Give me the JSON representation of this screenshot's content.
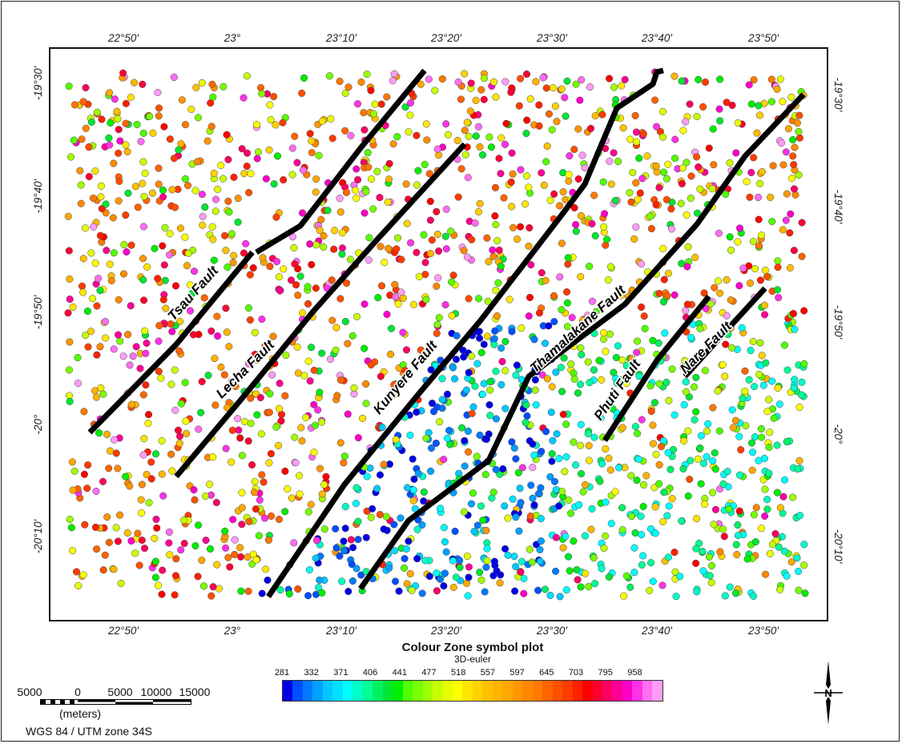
{
  "map": {
    "lon_labels": [
      "22°50'",
      "23°",
      "23°10'",
      "23°20'",
      "23°30'",
      "23°40'",
      "23°50'"
    ],
    "lat_labels": [
      "-19°30'",
      "-19°40'",
      "-19°50'",
      "-20°",
      "-20°10'"
    ],
    "faults": [
      "Tsau Fault",
      "Lecha Fault",
      "Kunyere Fault",
      "Thamalakane Fault",
      "Phuti Fault",
      "Nare Fault"
    ]
  },
  "legend": {
    "title": "Colour Zone symbol plot",
    "subtitle": "3D-euler",
    "ticks": [
      "281",
      "332",
      "371",
      "406",
      "441",
      "477",
      "518",
      "557",
      "597",
      "645",
      "703",
      "795",
      "958"
    ],
    "colors": [
      "#0000e6",
      "#0050ff",
      "#0078ff",
      "#00a0ff",
      "#00c8ff",
      "#00e0ff",
      "#00ffff",
      "#00ffc8",
      "#00ff96",
      "#00f064",
      "#00e632",
      "#00ee00",
      "#50ff00",
      "#78ff00",
      "#a0ff00",
      "#c8ff00",
      "#e6ff00",
      "#ffff00",
      "#ffe600",
      "#ffd200",
      "#ffc000",
      "#ffb400",
      "#ffa800",
      "#ff9600",
      "#ff8800",
      "#ff7800",
      "#ff6400",
      "#ff5000",
      "#ff3c00",
      "#ff2000",
      "#ff0000",
      "#ff0032",
      "#ff0064",
      "#ff0096",
      "#ff00c8",
      "#ff32e6",
      "#ff6ef0",
      "#ff9cf5"
    ]
  },
  "scale_bar": {
    "labels": [
      "5000",
      "0",
      "5000",
      "10000",
      "15000"
    ],
    "unit": "(meters)",
    "projection": "WGS 84 / UTM zone 34S"
  },
  "north_arrow": {
    "label": "N"
  }
}
